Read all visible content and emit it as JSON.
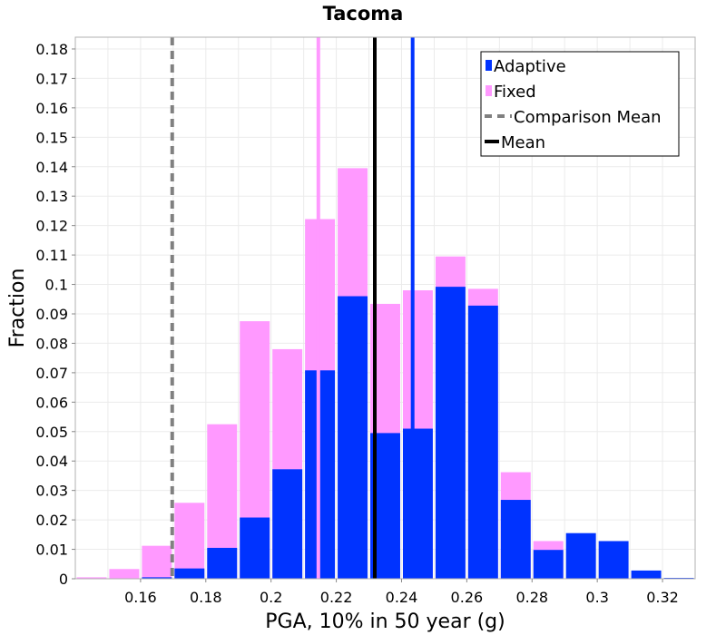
{
  "chart_data": {
    "type": "bar",
    "title": "Tacoma",
    "xlabel": "PGA, 10% in 50 year (g)",
    "ylabel": "Fraction",
    "xlim": [
      0.14,
      0.33
    ],
    "ylim": [
      0,
      0.184
    ],
    "xticks": [
      0.16,
      0.18,
      0.2,
      0.22,
      0.24,
      0.26,
      0.28,
      0.3,
      0.32
    ],
    "xtick_labels": [
      "0.16",
      "0.18",
      "0.2",
      "0.22",
      "0.24",
      "0.26",
      "0.28",
      "0.3",
      "0.32"
    ],
    "yticks": [
      0,
      0.01,
      0.02,
      0.03,
      0.04,
      0.05,
      0.06,
      0.07,
      0.08,
      0.09,
      0.1,
      0.11,
      0.12,
      0.13,
      0.14,
      0.15,
      0.16,
      0.17,
      0.18
    ],
    "ytick_labels": [
      "0",
      "0.01",
      "0.02",
      "0.03",
      "0.04",
      "0.05",
      "0.06",
      "0.07",
      "0.08",
      "0.09",
      "0.1",
      "0.11",
      "0.12",
      "0.13",
      "0.14",
      "0.15",
      "0.16",
      "0.17",
      "0.18"
    ],
    "bin_width": 0.01,
    "bin_centers": [
      0.145,
      0.155,
      0.165,
      0.175,
      0.185,
      0.195,
      0.205,
      0.215,
      0.225,
      0.235,
      0.245,
      0.255,
      0.265,
      0.275,
      0.285,
      0.295,
      0.305,
      0.315,
      0.325
    ],
    "series": [
      {
        "name": "Fixed",
        "color": "#ff99ff",
        "values": [
          0.0005,
          0.0033,
          0.0112,
          0.0258,
          0.0525,
          0.0875,
          0.078,
          0.1222,
          0.1395,
          0.0934,
          0.098,
          0.1095,
          0.0985,
          0.0362,
          0.0128,
          0,
          0,
          0,
          0
        ]
      },
      {
        "name": "Adaptive",
        "color": "#0033ff",
        "values": [
          0,
          0,
          0.0005,
          0.0035,
          0.0105,
          0.0208,
          0.0372,
          0.0708,
          0.096,
          0.0495,
          0.051,
          0.0992,
          0.0928,
          0.0268,
          0.0098,
          0.0155,
          0.0128,
          0.0028,
          0.0003
        ]
      }
    ],
    "lines": [
      {
        "name": "Comparison Mean",
        "x": 0.1697,
        "color": "#808080",
        "style": "dashed"
      },
      {
        "name": "Mean",
        "x": 0.2318,
        "color": "#000000",
        "style": "solid"
      },
      {
        "name": "Fixed mean",
        "x": 0.2145,
        "color": "#ff99ff",
        "style": "solid"
      },
      {
        "name": "Adaptive mean",
        "x": 0.2434,
        "color": "#0033ff",
        "style": "solid"
      }
    ],
    "legend": {
      "placement": "top-right",
      "entries": [
        {
          "label": "Adaptive",
          "color": "#0033ff",
          "kind": "box"
        },
        {
          "label": "Fixed",
          "color": "#ff99ff",
          "kind": "box"
        },
        {
          "label": "Comparison Mean",
          "color": "#808080",
          "kind": "dashed"
        },
        {
          "label": "Mean",
          "color": "#000000",
          "kind": "line"
        }
      ]
    },
    "grid": true
  }
}
